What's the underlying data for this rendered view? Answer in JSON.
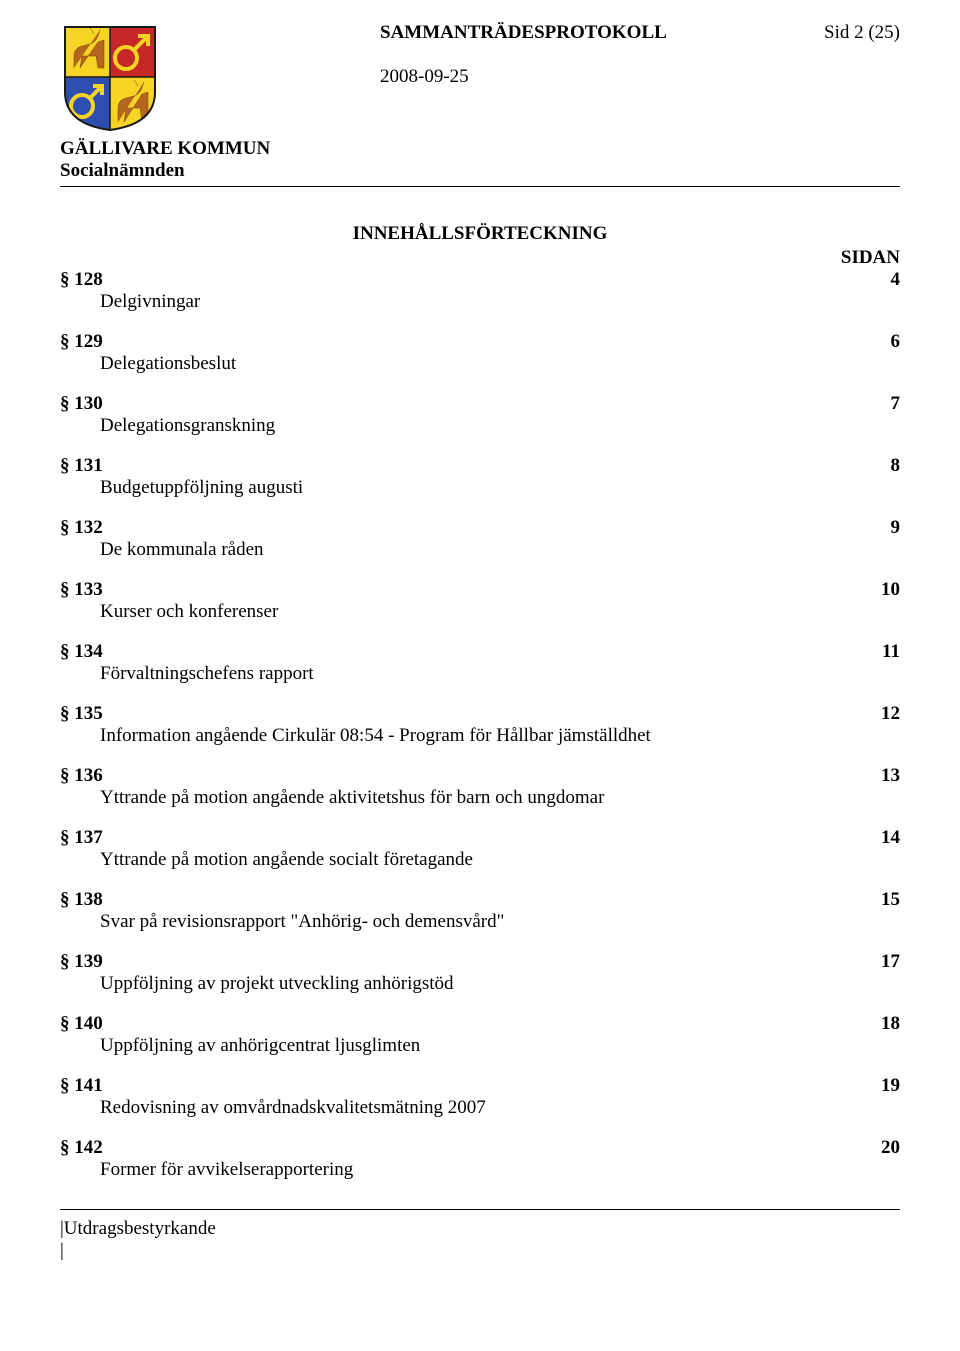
{
  "header": {
    "protocol_title": "SAMMANTRÄDESPROTOKOLL",
    "page_label": "Sid 2 (25)",
    "date": "2008-09-25",
    "org_name": "GÄLLIVARE KOMMUN",
    "org_unit": "Socialnämnden"
  },
  "crest": {
    "shield_border": "#1a1a1a",
    "q1_bg": "#f5d423",
    "q1_reindeer": "#b5651d",
    "q2_bg": "#c62828",
    "q2_symbol": "#f5d423",
    "q3_bg": "#2f4fb0",
    "q3_symbol": "#f5d423",
    "q4_bg": "#f5d423",
    "q4_reindeer": "#b5651d"
  },
  "toc": {
    "title": "INNEHÅLLSFÖRTECKNING",
    "page_header": "SIDAN",
    "entries": [
      {
        "section": "§ 128",
        "page": "4",
        "desc": "Delgivningar"
      },
      {
        "section": "§ 129",
        "page": "6",
        "desc": "Delegationsbeslut"
      },
      {
        "section": "§ 130",
        "page": "7",
        "desc": "Delegationsgranskning"
      },
      {
        "section": "§ 131",
        "page": "8",
        "desc": "Budgetuppföljning augusti"
      },
      {
        "section": "§ 132",
        "page": "9",
        "desc": "De kommunala råden"
      },
      {
        "section": "§ 133",
        "page": "10",
        "desc": "Kurser och konferenser"
      },
      {
        "section": "§ 134",
        "page": "11",
        "desc": "Förvaltningschefens rapport"
      },
      {
        "section": "§ 135",
        "page": "12",
        "desc": "Information angående Cirkulär 08:54 - Program för Hållbar jämställdhet"
      },
      {
        "section": "§ 136",
        "page": "13",
        "desc": "Yttrande på motion angående aktivitetshus för barn och ungdomar"
      },
      {
        "section": "§ 137",
        "page": "14",
        "desc": "Yttrande på motion angående socialt företagande"
      },
      {
        "section": "§ 138",
        "page": "15",
        "desc": "Svar på revisionsrapport \"Anhörig- och demensvård\""
      },
      {
        "section": "§ 139",
        "page": "17",
        "desc": "Uppföljning av projekt utveckling anhörigstöd"
      },
      {
        "section": "§ 140",
        "page": "18",
        "desc": "Uppföljning av anhörigcentrat ljusglimten"
      },
      {
        "section": "§ 141",
        "page": "19",
        "desc": "Redovisning av omvårdnadskvalitetsmätning 2007"
      },
      {
        "section": "§ 142",
        "page": "20",
        "desc": "Former för avvikelserapportering"
      }
    ]
  },
  "footer": {
    "label": "|Utdragsbestyrkande",
    "bar": "|"
  }
}
